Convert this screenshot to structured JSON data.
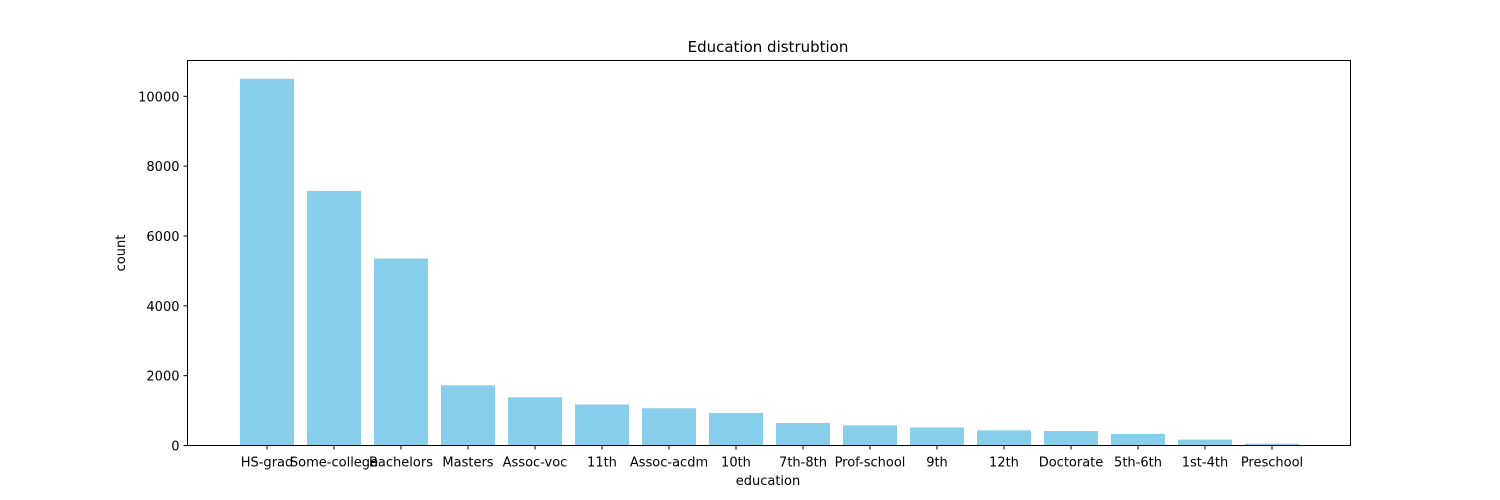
{
  "chart_data": {
    "type": "bar",
    "title": "Education distrubtion",
    "xlabel": "education",
    "ylabel": "count",
    "categories": [
      "HS-grad",
      "Some-college",
      "Bachelors",
      "Masters",
      "Assoc-voc",
      "11th",
      "Assoc-acdm",
      "10th",
      "7th-8th",
      "Prof-school",
      "9th",
      "12th",
      "Doctorate",
      "5th-6th",
      "1st-4th",
      "Preschool"
    ],
    "values": [
      10501,
      7291,
      5355,
      1723,
      1382,
      1175,
      1067,
      933,
      646,
      576,
      514,
      433,
      413,
      333,
      168,
      51
    ],
    "ylim": [
      0,
      11025
    ],
    "yticks": [
      0,
      2000,
      4000,
      6000,
      8000,
      10000
    ],
    "bar_color": "#87ceeb",
    "grid": false,
    "legend": "none"
  }
}
